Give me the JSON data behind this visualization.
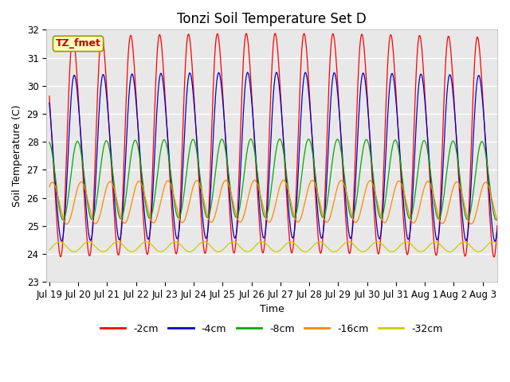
{
  "title": "Tonzi Soil Temperature Set D",
  "xlabel": "Time",
  "ylabel": "Soil Temperature (C)",
  "annotation": "TZ_fmet",
  "ylim": [
    23.0,
    32.0
  ],
  "yticks": [
    23.0,
    24.0,
    25.0,
    26.0,
    27.0,
    28.0,
    29.0,
    30.0,
    31.0,
    32.0
  ],
  "xtick_labels": [
    "Jul 19",
    "Jul 20",
    "Jul 21",
    "Jul 22",
    "Jul 23",
    "Jul 24",
    "Jul 25",
    "Jul 26",
    "Jul 27",
    "Jul 28",
    "Jul 29",
    "Jul 30",
    "Jul 31",
    "Aug 1",
    "Aug 2",
    "Aug 3"
  ],
  "colors": {
    "-2cm": "#ff0000",
    "-4cm": "#0000cc",
    "-8cm": "#00aa00",
    "-16cm": "#ff8800",
    "-32cm": "#cccc00"
  },
  "legend_labels": [
    "-2cm",
    "-4cm",
    "-8cm",
    "-16cm",
    "-32cm"
  ],
  "background_color": "#e8e8e8",
  "grid_color": "#ffffff",
  "title_fontsize": 12,
  "label_fontsize": 9,
  "tick_fontsize": 8.5
}
